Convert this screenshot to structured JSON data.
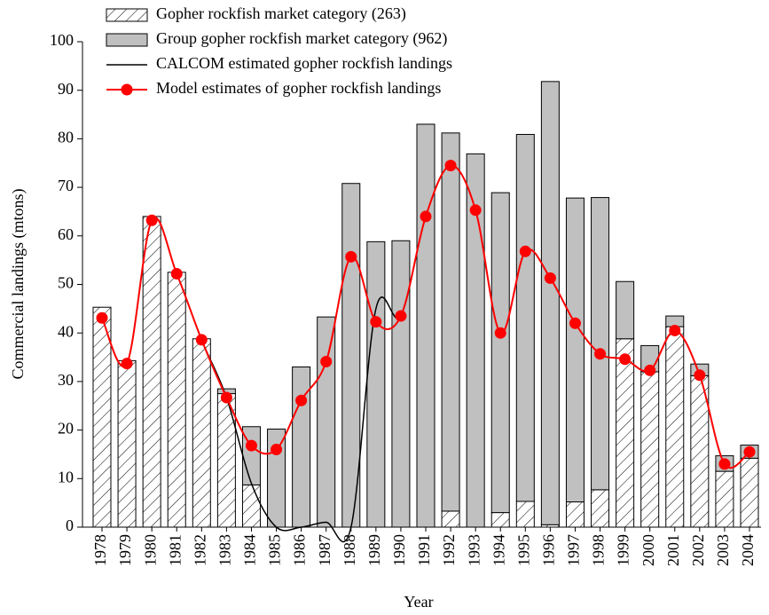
{
  "chart_data": {
    "type": "bar",
    "x_label": "Year",
    "y_label": "Commercial landings (mtons)",
    "categories": [
      "1978",
      "1979",
      "1980",
      "1981",
      "1982",
      "1983",
      "1984",
      "1985",
      "1986",
      "1987",
      "1988",
      "1989",
      "1990",
      "1991",
      "1992",
      "1993",
      "1994",
      "1995",
      "1996",
      "1997",
      "1998",
      "1999",
      "2000",
      "2001",
      "2002",
      "2003",
      "2004"
    ],
    "series": [
      {
        "name": "Gopher rockfish market category (263)",
        "type": "bar",
        "pattern": "hatch",
        "color": "#000000",
        "values": [
          45.3,
          34.3,
          64.0,
          52.5,
          38.8,
          27.5,
          8.7,
          0,
          0,
          0,
          0,
          0,
          0,
          0,
          3.3,
          0,
          3.0,
          5.3,
          0.5,
          5.2,
          7.7,
          38.8,
          32.0,
          41.3,
          31.2,
          11.5,
          14.2
        ]
      },
      {
        "name": "Group gopher rockfish market category (962)",
        "type": "bar",
        "color": "#c0c0c0",
        "values": [
          0,
          0,
          0,
          0,
          0,
          1.0,
          12.0,
          20.2,
          33.0,
          43.3,
          70.8,
          58.8,
          59.0,
          83.0,
          77.9,
          76.9,
          65.9,
          75.6,
          91.3,
          62.6,
          60.2,
          11.8,
          5.4,
          2.2,
          2.4,
          3.2,
          2.7
        ]
      },
      {
        "name": "CALCOM estimated gopher rockfish landings",
        "type": "line",
        "color": "#000000",
        "values": [
          43.1,
          33.7,
          63.2,
          52.2,
          38.6,
          26.7,
          9.0,
          0,
          0,
          1.0,
          0,
          45.0,
          43.5,
          64.0,
          74.5,
          65.3,
          40.0,
          56.8,
          51.3,
          42.0,
          35.7,
          34.6,
          32.3,
          40.5,
          31.3,
          13.0,
          15.5
        ]
      },
      {
        "name": "Model estimates of gopher rockfish landings",
        "type": "line",
        "marker": true,
        "color": "#ff0000",
        "values": [
          43.1,
          33.7,
          63.2,
          52.2,
          38.6,
          26.7,
          16.8,
          16.0,
          26.1,
          34.1,
          55.7,
          42.3,
          43.5,
          64.0,
          74.5,
          65.3,
          40.0,
          56.8,
          51.3,
          42.0,
          35.7,
          34.6,
          32.3,
          40.5,
          31.3,
          13.0,
          15.5
        ]
      }
    ],
    "ylim": [
      0,
      100
    ],
    "yticks": [
      0,
      10,
      20,
      30,
      40,
      50,
      60,
      70,
      80,
      90,
      100
    ],
    "grid": false,
    "legend": "top-left"
  }
}
